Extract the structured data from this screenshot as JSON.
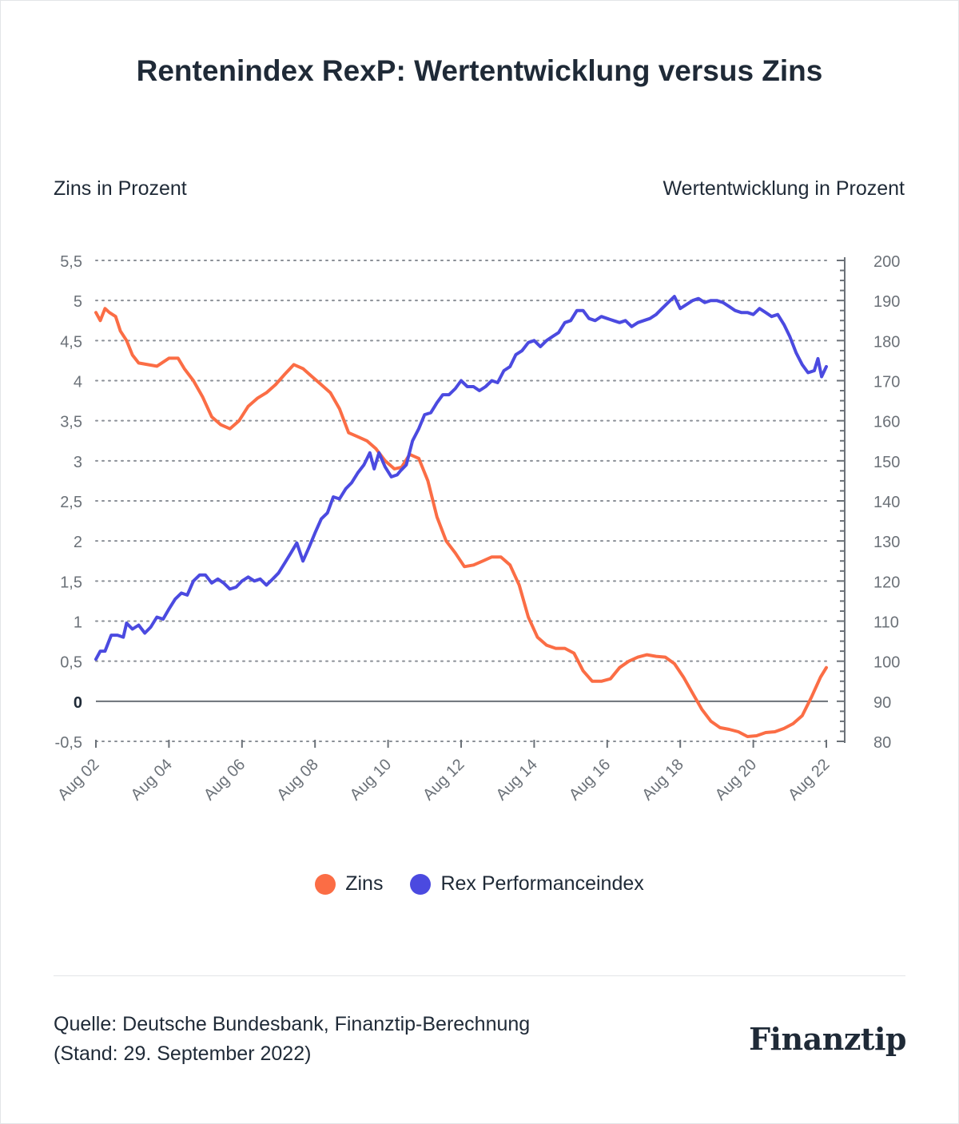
{
  "title": "Rentenindex RexP: Wertentwicklung versus Zins",
  "colors": {
    "zins": "#fb6d45",
    "rex": "#4b4ae0",
    "grid": "#8a8f96",
    "zero": "#6b7178",
    "tick_text": "#6b7178"
  },
  "chart_data": {
    "type": "line",
    "title": "Rentenindex RexP: Wertentwicklung versus Zins",
    "ylabel_left": "Zins in Prozent",
    "ylabel_right": "Wertentwicklung in Prozent",
    "x": [
      "2002-08",
      "2022-08"
    ],
    "xlim": [
      2002.58,
      2022.58
    ],
    "x_ticks": [
      "Aug 02",
      "Aug 04",
      "Aug 06",
      "Aug 08",
      "Aug 10",
      "Aug 12",
      "Aug 14",
      "Aug 16",
      "Aug 18",
      "Aug 20",
      "Aug 22"
    ],
    "ylim_left": [
      -0.5,
      5.5
    ],
    "y_ticks_left": [
      "5,5",
      "5",
      "4,5",
      "4",
      "3,5",
      "3",
      "2,5",
      "2",
      "1,5",
      "1",
      "0,5",
      "0",
      "-0,5"
    ],
    "ylim_right": [
      80,
      200
    ],
    "y_ticks_right": [
      "200",
      "190",
      "180",
      "170",
      "160",
      "150",
      "140",
      "130",
      "120",
      "110",
      "100",
      "90",
      "80"
    ],
    "series": [
      {
        "name": "Zins",
        "axis": "left",
        "points": [
          [
            2002.58,
            4.85
          ],
          [
            2002.7,
            4.75
          ],
          [
            2002.83,
            4.9
          ],
          [
            2002.95,
            4.85
          ],
          [
            2003.12,
            4.8
          ],
          [
            2003.25,
            4.62
          ],
          [
            2003.42,
            4.5
          ],
          [
            2003.58,
            4.32
          ],
          [
            2003.75,
            4.22
          ],
          [
            2004.0,
            4.2
          ],
          [
            2004.25,
            4.18
          ],
          [
            2004.58,
            4.28
          ],
          [
            2004.83,
            4.28
          ],
          [
            2005.0,
            4.15
          ],
          [
            2005.25,
            4.0
          ],
          [
            2005.5,
            3.8
          ],
          [
            2005.75,
            3.55
          ],
          [
            2006.0,
            3.45
          ],
          [
            2006.25,
            3.4
          ],
          [
            2006.5,
            3.5
          ],
          [
            2006.75,
            3.68
          ],
          [
            2007.0,
            3.78
          ],
          [
            2007.25,
            3.85
          ],
          [
            2007.5,
            3.95
          ],
          [
            2007.75,
            4.08
          ],
          [
            2008.0,
            4.2
          ],
          [
            2008.25,
            4.15
          ],
          [
            2008.5,
            4.05
          ],
          [
            2008.75,
            3.95
          ],
          [
            2009.0,
            3.85
          ],
          [
            2009.25,
            3.65
          ],
          [
            2009.5,
            3.35
          ],
          [
            2009.75,
            3.3
          ],
          [
            2010.0,
            3.25
          ],
          [
            2010.25,
            3.15
          ],
          [
            2010.5,
            3.0
          ],
          [
            2010.75,
            2.9
          ],
          [
            2010.95,
            2.92
          ],
          [
            2011.17,
            3.08
          ],
          [
            2011.42,
            3.03
          ],
          [
            2011.67,
            2.75
          ],
          [
            2011.92,
            2.3
          ],
          [
            2012.17,
            2.0
          ],
          [
            2012.42,
            1.85
          ],
          [
            2012.67,
            1.68
          ],
          [
            2012.92,
            1.7
          ],
          [
            2013.17,
            1.75
          ],
          [
            2013.42,
            1.8
          ],
          [
            2013.67,
            1.8
          ],
          [
            2013.92,
            1.7
          ],
          [
            2014.17,
            1.45
          ],
          [
            2014.42,
            1.05
          ],
          [
            2014.67,
            0.8
          ],
          [
            2014.92,
            0.7
          ],
          [
            2015.17,
            0.66
          ],
          [
            2015.42,
            0.66
          ],
          [
            2015.67,
            0.6
          ],
          [
            2015.92,
            0.38
          ],
          [
            2016.17,
            0.25
          ],
          [
            2016.42,
            0.25
          ],
          [
            2016.67,
            0.28
          ],
          [
            2016.92,
            0.42
          ],
          [
            2017.17,
            0.5
          ],
          [
            2017.42,
            0.55
          ],
          [
            2017.67,
            0.58
          ],
          [
            2017.92,
            0.56
          ],
          [
            2018.17,
            0.55
          ],
          [
            2018.42,
            0.47
          ],
          [
            2018.67,
            0.3
          ],
          [
            2018.92,
            0.1
          ],
          [
            2019.17,
            -0.1
          ],
          [
            2019.42,
            -0.25
          ],
          [
            2019.67,
            -0.33
          ],
          [
            2019.92,
            -0.35
          ],
          [
            2020.17,
            -0.38
          ],
          [
            2020.42,
            -0.44
          ],
          [
            2020.67,
            -0.43
          ],
          [
            2020.92,
            -0.39
          ],
          [
            2021.17,
            -0.38
          ],
          [
            2021.42,
            -0.34
          ],
          [
            2021.67,
            -0.28
          ],
          [
            2021.92,
            -0.18
          ],
          [
            2022.17,
            0.05
          ],
          [
            2022.42,
            0.3
          ],
          [
            2022.58,
            0.42
          ]
        ]
      },
      {
        "name": "Rex Performanceindex",
        "axis": "right",
        "points": [
          [
            2002.58,
            100.5
          ],
          [
            2002.7,
            102.5
          ],
          [
            2002.83,
            102.5
          ],
          [
            2003.0,
            106.5
          ],
          [
            2003.17,
            106.5
          ],
          [
            2003.33,
            106.0
          ],
          [
            2003.42,
            109.5
          ],
          [
            2003.58,
            108.0
          ],
          [
            2003.75,
            109.0
          ],
          [
            2003.92,
            107.0
          ],
          [
            2004.08,
            108.5
          ],
          [
            2004.25,
            111.0
          ],
          [
            2004.42,
            110.5
          ],
          [
            2004.58,
            113.0
          ],
          [
            2004.75,
            115.5
          ],
          [
            2004.92,
            117.0
          ],
          [
            2005.08,
            116.5
          ],
          [
            2005.25,
            120.0
          ],
          [
            2005.42,
            121.5
          ],
          [
            2005.58,
            121.5
          ],
          [
            2005.75,
            119.5
          ],
          [
            2005.92,
            120.5
          ],
          [
            2006.08,
            119.5
          ],
          [
            2006.25,
            118.0
          ],
          [
            2006.42,
            118.5
          ],
          [
            2006.58,
            120.0
          ],
          [
            2006.75,
            121.0
          ],
          [
            2006.92,
            120.0
          ],
          [
            2007.08,
            120.5
          ],
          [
            2007.25,
            119.0
          ],
          [
            2007.42,
            120.5
          ],
          [
            2007.58,
            122.0
          ],
          [
            2007.75,
            124.5
          ],
          [
            2007.92,
            127.0
          ],
          [
            2008.08,
            129.5
          ],
          [
            2008.25,
            125.0
          ],
          [
            2008.42,
            128.5
          ],
          [
            2008.58,
            132.0
          ],
          [
            2008.75,
            135.5
          ],
          [
            2008.92,
            137.0
          ],
          [
            2009.08,
            141.0
          ],
          [
            2009.25,
            140.5
          ],
          [
            2009.42,
            143.0
          ],
          [
            2009.58,
            144.5
          ],
          [
            2009.75,
            147.0
          ],
          [
            2009.92,
            149.0
          ],
          [
            2010.08,
            152.0
          ],
          [
            2010.2,
            148.0
          ],
          [
            2010.33,
            152.0
          ],
          [
            2010.5,
            148.5
          ],
          [
            2010.67,
            146.0
          ],
          [
            2010.83,
            146.5
          ],
          [
            2010.92,
            147.5
          ],
          [
            2011.08,
            149.0
          ],
          [
            2011.25,
            155.0
          ],
          [
            2011.42,
            158.0
          ],
          [
            2011.58,
            161.5
          ],
          [
            2011.75,
            162.0
          ],
          [
            2011.92,
            164.5
          ],
          [
            2012.08,
            166.5
          ],
          [
            2012.25,
            166.5
          ],
          [
            2012.42,
            168.0
          ],
          [
            2012.58,
            170.0
          ],
          [
            2012.75,
            168.5
          ],
          [
            2012.92,
            168.5
          ],
          [
            2013.08,
            167.5
          ],
          [
            2013.25,
            168.5
          ],
          [
            2013.42,
            170.0
          ],
          [
            2013.58,
            169.5
          ],
          [
            2013.75,
            172.5
          ],
          [
            2013.92,
            173.5
          ],
          [
            2014.08,
            176.5
          ],
          [
            2014.25,
            177.5
          ],
          [
            2014.42,
            179.5
          ],
          [
            2014.58,
            180.0
          ],
          [
            2014.75,
            178.5
          ],
          [
            2014.92,
            180.0
          ],
          [
            2015.08,
            181.0
          ],
          [
            2015.25,
            182.0
          ],
          [
            2015.42,
            184.5
          ],
          [
            2015.58,
            185.0
          ],
          [
            2015.75,
            187.5
          ],
          [
            2015.92,
            187.5
          ],
          [
            2016.08,
            185.5
          ],
          [
            2016.25,
            185.0
          ],
          [
            2016.42,
            186.0
          ],
          [
            2016.58,
            185.5
          ],
          [
            2016.75,
            185.0
          ],
          [
            2016.92,
            184.5
          ],
          [
            2017.08,
            185.0
          ],
          [
            2017.25,
            183.5
          ],
          [
            2017.42,
            184.5
          ],
          [
            2017.58,
            185.0
          ],
          [
            2017.75,
            185.5
          ],
          [
            2017.92,
            186.5
          ],
          [
            2018.08,
            188.0
          ],
          [
            2018.25,
            189.5
          ],
          [
            2018.42,
            191.0
          ],
          [
            2018.58,
            188.0
          ],
          [
            2018.75,
            189.0
          ],
          [
            2018.92,
            190.0
          ],
          [
            2019.08,
            190.5
          ],
          [
            2019.25,
            189.5
          ],
          [
            2019.42,
            190.0
          ],
          [
            2019.58,
            190.0
          ],
          [
            2019.75,
            189.5
          ],
          [
            2019.92,
            188.5
          ],
          [
            2020.08,
            187.5
          ],
          [
            2020.25,
            187.0
          ],
          [
            2020.42,
            187.0
          ],
          [
            2020.58,
            186.5
          ],
          [
            2020.75,
            188.0
          ],
          [
            2020.92,
            187.0
          ],
          [
            2021.08,
            186.0
          ],
          [
            2021.25,
            186.5
          ],
          [
            2021.42,
            184.0
          ],
          [
            2021.58,
            181.0
          ],
          [
            2021.75,
            177.0
          ],
          [
            2021.92,
            174.0
          ],
          [
            2022.08,
            172.0
          ],
          [
            2022.25,
            172.5
          ],
          [
            2022.35,
            175.5
          ],
          [
            2022.45,
            171.0
          ],
          [
            2022.58,
            173.5
          ]
        ]
      }
    ],
    "legend": [
      "Zins",
      "Rex Performanceindex"
    ],
    "grid": true
  },
  "legend": {
    "zins": "Zins",
    "rex": "Rex Performanceindex"
  },
  "footer": {
    "source_line1": "Quelle: Deutsche Bundesbank, Finanztip-Berechnung",
    "source_line2": "(Stand: 29. September 2022)",
    "logo": "Finanztip"
  }
}
